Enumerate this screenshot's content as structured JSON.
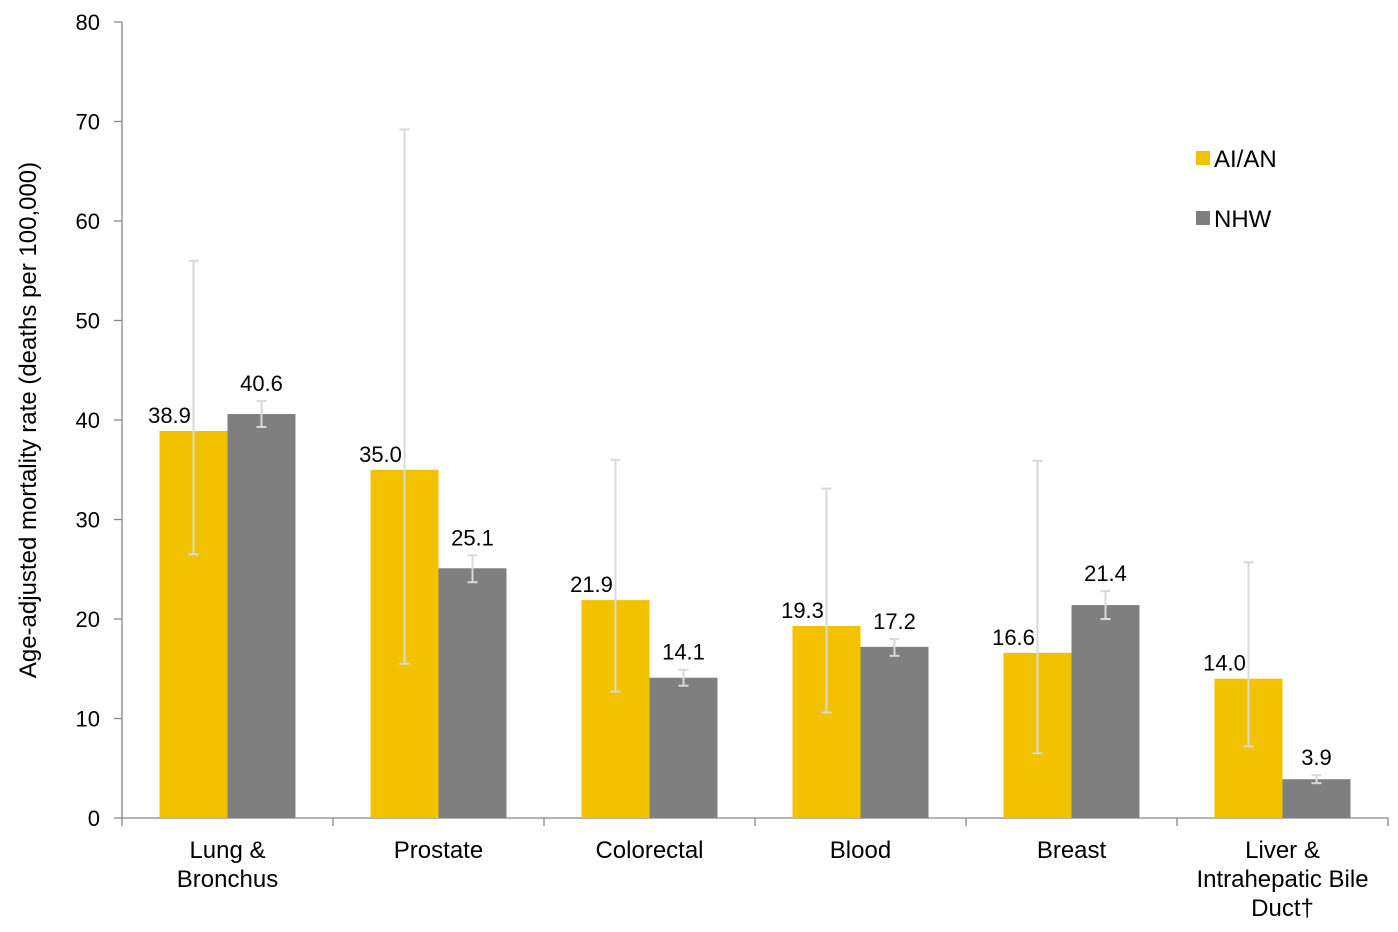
{
  "chart_data": {
    "type": "bar",
    "ylabel": "Age-adjusted mortality rate (deaths per 100,000)",
    "ylim": [
      0,
      80
    ],
    "yticks": [
      0,
      10,
      20,
      30,
      40,
      50,
      60,
      70,
      80
    ],
    "categories": [
      [
        "Lung &",
        "Bronchus"
      ],
      [
        "Prostate"
      ],
      [
        "Colorectal"
      ],
      [
        "Blood"
      ],
      [
        "Breast"
      ],
      [
        "Liver &",
        "Intrahepatic Bile",
        "Duct†"
      ]
    ],
    "series": [
      {
        "name": "AI/AN",
        "color": "#F2C200",
        "values": [
          38.9,
          35.0,
          21.9,
          19.3,
          16.6,
          14.0
        ],
        "labels": [
          "38.9",
          "35.0",
          "21.9",
          "19.3",
          "16.6",
          "14.0"
        ],
        "error_low": [
          26.5,
          15.5,
          12.7,
          10.6,
          6.5,
          7.2
        ],
        "error_high": [
          56.0,
          69.2,
          36.0,
          33.1,
          35.9,
          25.7
        ]
      },
      {
        "name": "NHW",
        "color": "#7F7F7F",
        "values": [
          40.6,
          25.1,
          14.1,
          17.2,
          21.4,
          3.9
        ],
        "labels": [
          "40.6",
          "25.1",
          "14.1",
          "17.2",
          "21.4",
          "3.9"
        ],
        "error_low": [
          39.3,
          23.7,
          13.3,
          16.3,
          20.0,
          3.5
        ],
        "error_high": [
          41.9,
          26.4,
          14.9,
          18.0,
          22.8,
          4.3
        ]
      }
    ],
    "legend_position": "top-right",
    "grid": false,
    "error_bar_color": "#D9D9D9"
  }
}
